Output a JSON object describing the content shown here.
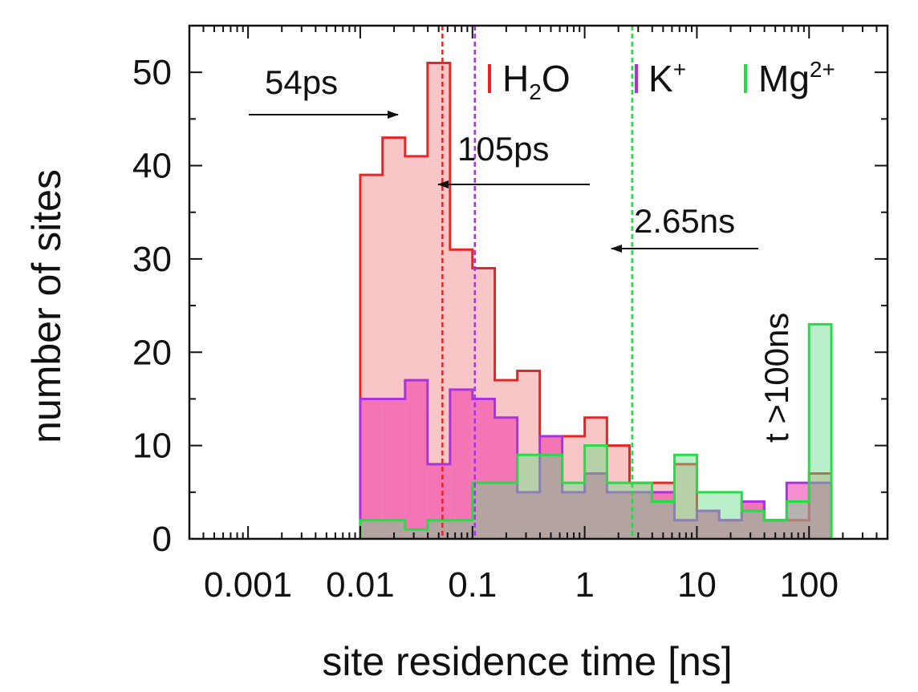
{
  "chart_data": {
    "type": "histogram-step",
    "xlabel": "site residence time [ns]",
    "ylabel": "number of sites",
    "xscale": "log",
    "xlim": [
      0.0003,
      500
    ],
    "ylim": [
      0,
      55
    ],
    "xticks": [
      {
        "value": 0.001,
        "label": "0.001"
      },
      {
        "value": 0.01,
        "label": "0.01"
      },
      {
        "value": 0.1,
        "label": "0.1"
      },
      {
        "value": 1,
        "label": "1"
      },
      {
        "value": 10,
        "label": "10"
      },
      {
        "value": 100,
        "label": "100"
      }
    ],
    "yticks": [
      0,
      10,
      20,
      30,
      40,
      50
    ],
    "bin_edges": [
      0.01,
      0.0158,
      0.0251,
      0.0398,
      0.0631,
      0.1,
      0.158,
      0.251,
      0.398,
      0.631,
      1,
      1.58,
      2.51,
      3.98,
      6.31,
      10,
      15.8,
      25.1,
      39.8,
      63.1,
      100,
      158
    ],
    "series": [
      {
        "name_main": "H",
        "name_sub": "2",
        "name_rest": "O",
        "color": "#ee2222",
        "fill": "#f5a8a8",
        "fill_opacity": 0.65,
        "values": [
          39,
          43,
          41,
          51,
          31,
          29,
          17,
          18,
          11,
          11,
          13,
          10,
          6,
          6,
          8,
          3,
          2,
          4,
          2,
          2,
          7
        ]
      },
      {
        "name_main": "K",
        "name_sup": "+",
        "color": "#aa33dd",
        "fill": "#ee33aa",
        "fill_opacity": 0.55,
        "values": [
          15,
          15,
          17,
          8,
          16,
          15,
          13,
          5,
          11,
          5,
          7,
          5,
          5,
          5,
          2,
          3,
          2,
          4,
          2,
          6,
          6
        ]
      },
      {
        "name_main": "Mg",
        "name_sup": "2+",
        "color": "#22dd44",
        "fill": "#66dd88",
        "fill_opacity": 0.45,
        "values": [
          2,
          2,
          1,
          2,
          2,
          6,
          6,
          9,
          9,
          6,
          10,
          6,
          6,
          4,
          9,
          5,
          5,
          3,
          2,
          4,
          23
        ]
      }
    ],
    "vlines": [
      {
        "x": 0.054,
        "color": "#ee2222"
      },
      {
        "x": 0.105,
        "color": "#aa33dd"
      },
      {
        "x": 2.65,
        "color": "#22dd44"
      }
    ],
    "annotations": [
      {
        "text": "54ps"
      },
      {
        "text": "105ps"
      },
      {
        "text": "2.65ns"
      },
      {
        "text": "t >100ns"
      }
    ],
    "legend_placement": "top-right",
    "grid": false
  }
}
